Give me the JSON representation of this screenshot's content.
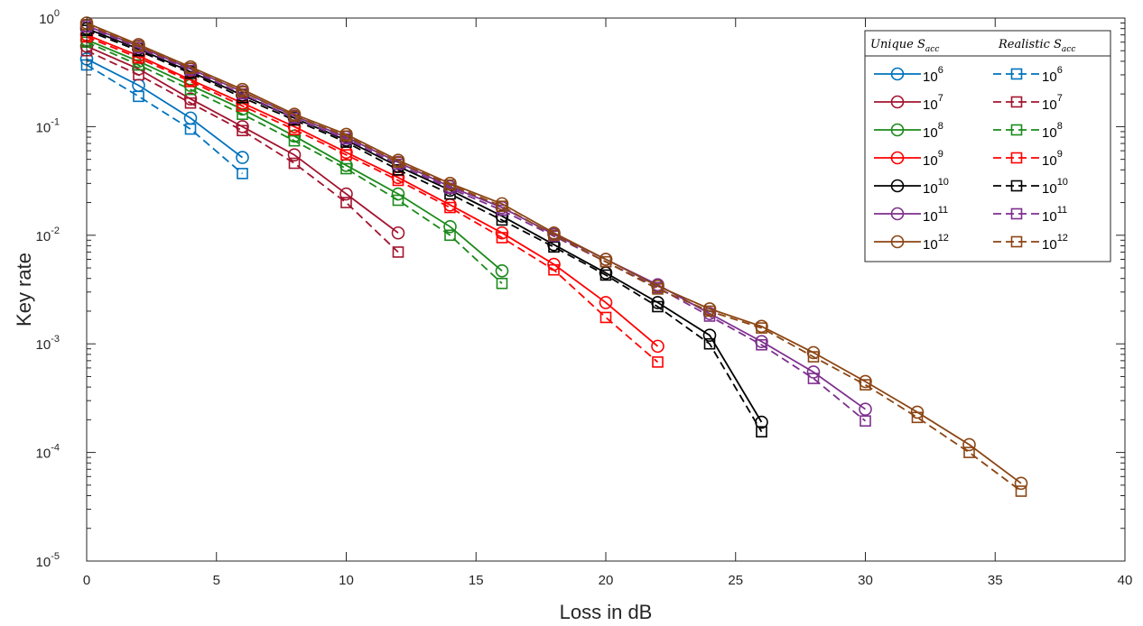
{
  "chart_data": {
    "type": "line",
    "xlabel": "Loss in dB",
    "ylabel": "Key rate",
    "xlim": [
      0,
      40
    ],
    "ylim": [
      1e-05,
      1
    ],
    "yscale": "log",
    "xticks": [
      "0",
      "5",
      "10",
      "15",
      "20",
      "25",
      "30",
      "35",
      "40"
    ],
    "yticks": [
      {
        "base": "10",
        "exp": "-5"
      },
      {
        "base": "10",
        "exp": "-4"
      },
      {
        "base": "10",
        "exp": "-3"
      },
      {
        "base": "10",
        "exp": "-2"
      },
      {
        "base": "10",
        "exp": "-1"
      },
      {
        "base": "10",
        "exp": "0"
      }
    ],
    "legend": {
      "placement": "top-right",
      "header_left": {
        "base": "Unique S",
        "sub": "acc"
      },
      "header_right": {
        "base": "Realistic S",
        "sub": "acc"
      }
    },
    "series": [
      {
        "label_base": "10",
        "label_exp": "6",
        "color": "#0072BD",
        "unique": {
          "x": [
            0,
            2,
            4,
            6
          ],
          "y": [
            0.42,
            0.24,
            0.12,
            0.052
          ]
        },
        "realistic": {
          "x": [
            0,
            2,
            4,
            6
          ],
          "y": [
            0.37,
            0.19,
            0.095,
            0.037
          ]
        }
      },
      {
        "label_base": "10",
        "label_exp": "7",
        "color": "#A2142F",
        "unique": {
          "x": [
            0,
            2,
            4,
            6,
            8,
            10,
            12
          ],
          "y": [
            0.55,
            0.34,
            0.18,
            0.1,
            0.055,
            0.024,
            0.0105
          ]
        },
        "realistic": {
          "x": [
            0,
            2,
            4,
            6,
            8,
            10,
            12
          ],
          "y": [
            0.5,
            0.3,
            0.165,
            0.092,
            0.046,
            0.02,
            0.007
          ]
        }
      },
      {
        "label_base": "10",
        "label_exp": "8",
        "color": "#1B8A1B",
        "unique": {
          "x": [
            0,
            2,
            4,
            6,
            8,
            10,
            12,
            14,
            16
          ],
          "y": [
            0.63,
            0.4,
            0.24,
            0.145,
            0.082,
            0.044,
            0.024,
            0.012,
            0.0047
          ]
        },
        "realistic": {
          "x": [
            0,
            2,
            4,
            6,
            8,
            10,
            12,
            14,
            16
          ],
          "y": [
            0.6,
            0.37,
            0.22,
            0.13,
            0.074,
            0.041,
            0.021,
            0.01,
            0.0036
          ]
        }
      },
      {
        "label_base": "10",
        "label_exp": "9",
        "color": "#FF0000",
        "unique": {
          "x": [
            0,
            2,
            4,
            6,
            8,
            10,
            12,
            14,
            16,
            18,
            20,
            22
          ],
          "y": [
            0.7,
            0.45,
            0.27,
            0.165,
            0.1,
            0.058,
            0.034,
            0.019,
            0.0105,
            0.0054,
            0.0024,
            0.00095
          ]
        },
        "realistic": {
          "x": [
            0,
            2,
            4,
            6,
            8,
            10,
            12,
            14,
            16,
            18,
            20,
            22
          ],
          "y": [
            0.67,
            0.43,
            0.26,
            0.155,
            0.094,
            0.055,
            0.032,
            0.018,
            0.0095,
            0.0048,
            0.00175,
            0.00068
          ]
        }
      },
      {
        "label_base": "10",
        "label_exp": "10",
        "color": "#000000",
        "unique": {
          "x": [
            0,
            2,
            4,
            6,
            8,
            10,
            12,
            14,
            16,
            18,
            20,
            22,
            24,
            26
          ],
          "y": [
            0.8,
            0.52,
            0.32,
            0.195,
            0.12,
            0.075,
            0.043,
            0.026,
            0.015,
            0.0082,
            0.0045,
            0.0024,
            0.0012,
            0.00019
          ]
        },
        "realistic": {
          "x": [
            0,
            2,
            4,
            6,
            8,
            10,
            12,
            14,
            16,
            18,
            20,
            22,
            24,
            26
          ],
          "y": [
            0.77,
            0.5,
            0.31,
            0.185,
            0.115,
            0.072,
            0.04,
            0.024,
            0.0138,
            0.0078,
            0.0043,
            0.0022,
            0.001,
            0.000155
          ]
        }
      },
      {
        "label_base": "10",
        "label_exp": "11",
        "color": "#7E2F8E",
        "unique": {
          "x": [
            0,
            2,
            4,
            6,
            8,
            10,
            12,
            14,
            16,
            18,
            20,
            22,
            24,
            26,
            28,
            30
          ],
          "y": [
            0.85,
            0.55,
            0.34,
            0.21,
            0.125,
            0.08,
            0.047,
            0.028,
            0.018,
            0.0102,
            0.006,
            0.0035,
            0.0019,
            0.00105,
            0.00055,
            0.00025
          ]
        },
        "realistic": {
          "x": [
            0,
            2,
            4,
            6,
            8,
            10,
            12,
            14,
            16,
            18,
            20,
            22,
            24,
            26,
            28,
            30
          ],
          "y": [
            0.83,
            0.53,
            0.33,
            0.2,
            0.12,
            0.077,
            0.045,
            0.027,
            0.017,
            0.0098,
            0.0057,
            0.0033,
            0.0018,
            0.00098,
            0.00048,
            0.000195
          ]
        }
      },
      {
        "label_base": "10",
        "label_exp": "12",
        "color": "#8B4513",
        "unique": {
          "x": [
            0,
            2,
            4,
            6,
            8,
            10,
            12,
            14,
            16,
            18,
            20,
            22,
            24,
            26,
            28,
            30,
            32,
            34,
            36
          ],
          "y": [
            0.9,
            0.57,
            0.355,
            0.22,
            0.13,
            0.085,
            0.049,
            0.03,
            0.0195,
            0.0105,
            0.006,
            0.0034,
            0.0021,
            0.00145,
            0.00083,
            0.00045,
            0.000235,
            0.000118,
            5.2e-05
          ]
        },
        "realistic": {
          "x": [
            0,
            2,
            4,
            6,
            8,
            10,
            12,
            14,
            16,
            18,
            20,
            22,
            24,
            26,
            28,
            30,
            32,
            34,
            36
          ],
          "y": [
            0.87,
            0.55,
            0.345,
            0.21,
            0.125,
            0.082,
            0.047,
            0.029,
            0.0185,
            0.01,
            0.0057,
            0.0032,
            0.002,
            0.0014,
            0.00076,
            0.00042,
            0.00021,
            0.0001,
            4.4e-05
          ]
        }
      }
    ]
  }
}
